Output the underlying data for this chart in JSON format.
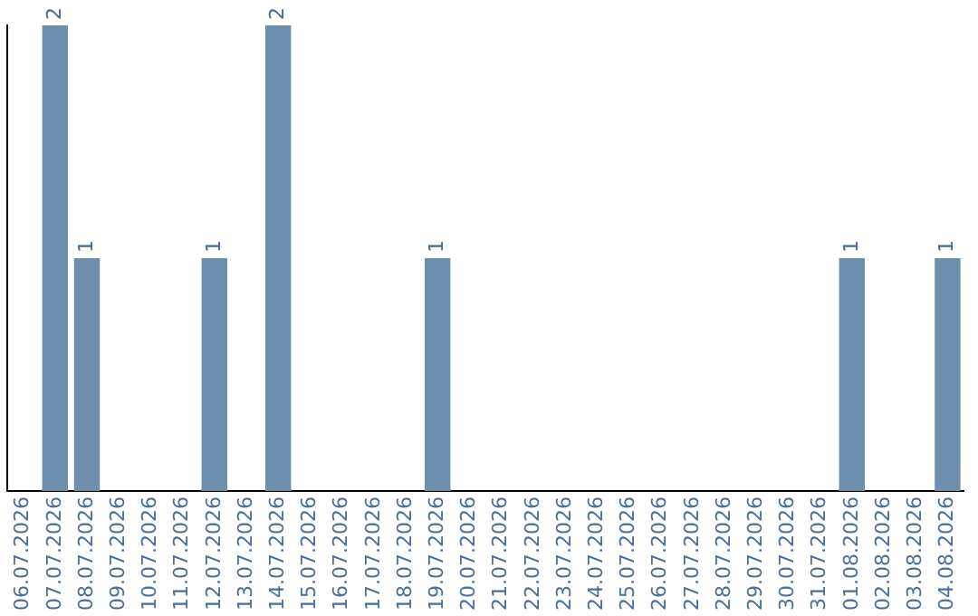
{
  "chart_data": {
    "type": "bar",
    "categories": [
      "06.07.2026",
      "07.07.2026",
      "08.07.2026",
      "09.07.2026",
      "10.07.2026",
      "11.07.2026",
      "12.07.2026",
      "13.07.2026",
      "14.07.2026",
      "15.07.2026",
      "16.07.2026",
      "17.07.2026",
      "18.07.2026",
      "19.07.2026",
      "20.07.2026",
      "21.07.2026",
      "22.07.2026",
      "23.07.2026",
      "24.07.2026",
      "25.07.2026",
      "26.07.2026",
      "27.07.2026",
      "28.07.2026",
      "29.07.2026",
      "30.07.2026",
      "31.07.2026",
      "01.08.2026",
      "02.08.2026",
      "03.08.2026",
      "04.08.2026"
    ],
    "values": [
      0,
      2,
      1,
      0,
      0,
      0,
      1,
      0,
      2,
      0,
      0,
      0,
      0,
      1,
      0,
      0,
      0,
      0,
      0,
      0,
      0,
      0,
      0,
      0,
      0,
      0,
      1,
      0,
      0,
      1
    ],
    "value_labels": [
      null,
      "2",
      "1",
      null,
      null,
      null,
      "1",
      null,
      "2",
      null,
      null,
      null,
      null,
      "1",
      null,
      null,
      null,
      null,
      null,
      null,
      null,
      null,
      null,
      null,
      null,
      null,
      "1",
      null,
      null,
      "1"
    ],
    "color": "#6d8fad",
    "ylim": [
      0,
      2
    ],
    "grid": false,
    "legend": false,
    "tick_labels": "x"
  }
}
